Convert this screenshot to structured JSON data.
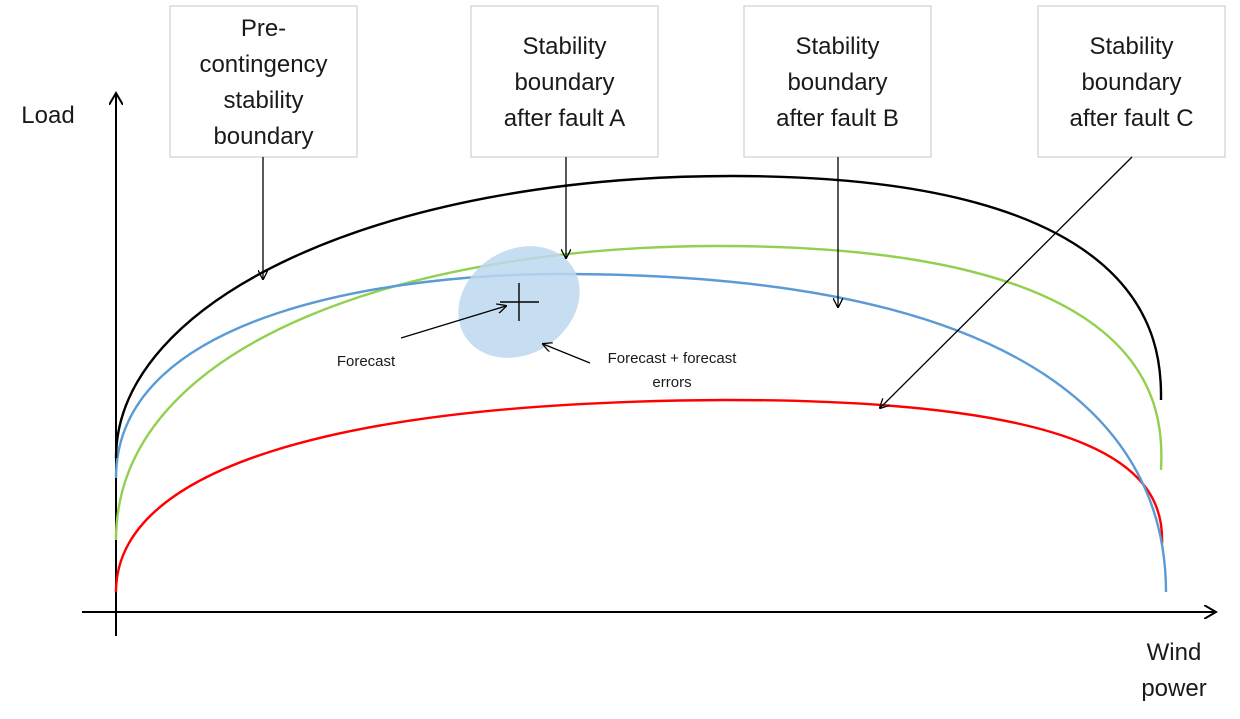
{
  "axes": {
    "y_label": "Load",
    "x_label_line1": "Wind",
    "x_label_line2": "power"
  },
  "callouts": [
    {
      "id": "pre",
      "lines": [
        "Pre-",
        "contingency",
        "stability",
        "boundary"
      ]
    },
    {
      "id": "fault-a",
      "lines": [
        "Stability",
        "boundary",
        "after fault A"
      ]
    },
    {
      "id": "fault-b",
      "lines": [
        "Stability",
        "boundary",
        "after fault B"
      ]
    },
    {
      "id": "fault-c",
      "lines": [
        "Stability",
        "boundary",
        "after fault C"
      ]
    }
  ],
  "annotations": {
    "forecast": "Forecast",
    "forecast_errors_line1": "Forecast + forecast",
    "forecast_errors_line2": "errors"
  },
  "colors": {
    "pre_contingency": "#000000",
    "fault_a": "#92d050",
    "fault_b": "#5b9bd5",
    "fault_c": "#ff0000",
    "uncertainty_region": "#bdd7ee"
  }
}
